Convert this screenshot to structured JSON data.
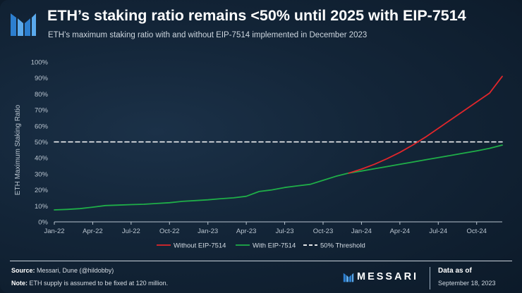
{
  "header": {
    "title": "ETH’s staking ratio remains <50% until 2025 with EIP-7514",
    "subtitle": "ETH’s maximum staking ratio with and without EIP-7514 implemented in December 2023"
  },
  "chart_data": {
    "type": "line",
    "ylabel": "ETH Maximum Staking Ratio",
    "xlabel": "",
    "ylim": [
      0,
      100
    ],
    "xlim": [
      0,
      35
    ],
    "y_ticks": [
      0,
      10,
      20,
      30,
      40,
      50,
      60,
      70,
      80,
      90,
      100
    ],
    "y_tick_labels": [
      "0%",
      "10%",
      "20%",
      "30%",
      "40%",
      "50%",
      "60%",
      "70%",
      "80%",
      "90%",
      "100%"
    ],
    "x_ticks": [
      0,
      3,
      6,
      9,
      12,
      15,
      18,
      21,
      24,
      27,
      30,
      33
    ],
    "x_tick_labels": [
      "Jan-22",
      "Apr-22",
      "Jul-22",
      "Oct-22",
      "Jan-23",
      "Apr-23",
      "Jul-23",
      "Oct-23",
      "Jan-24",
      "Apr-24",
      "Jul-24",
      "Oct-24"
    ],
    "grid": false,
    "legend_position": "bottom-center",
    "series": [
      {
        "name": "Without EIP-7514",
        "color": "#e0262b",
        "x": [
          23,
          24,
          25,
          26,
          27,
          28,
          29,
          30,
          31,
          32,
          33,
          34,
          35
        ],
        "y": [
          30.5,
          33,
          36,
          39.5,
          43.5,
          48,
          53,
          58.5,
          64,
          69.5,
          75,
          80.5,
          91
        ]
      },
      {
        "name": "With EIP-7514",
        "color": "#1fae48",
        "x": [
          0,
          1,
          2,
          3,
          4,
          5,
          6,
          7,
          8,
          9,
          10,
          11,
          12,
          13,
          14,
          15,
          16,
          17,
          18,
          19,
          20,
          21,
          22,
          23,
          24,
          25,
          26,
          27,
          28,
          29,
          30,
          31,
          32,
          33,
          34,
          35
        ],
        "y": [
          7.5,
          7.8,
          8.3,
          9.2,
          10.2,
          10.5,
          10.8,
          11.0,
          11.5,
          12.0,
          12.8,
          13.3,
          13.8,
          14.5,
          15.0,
          16.0,
          19.0,
          20.0,
          21.5,
          22.5,
          23.5,
          26.0,
          28.5,
          30.5,
          31.8,
          33.2,
          34.6,
          36.0,
          37.4,
          38.8,
          40.2,
          41.6,
          43.0,
          44.4,
          46.0,
          48.0
        ]
      },
      {
        "name": "50% Threshold",
        "color": "#ffffff",
        "dashed": true,
        "x": [
          0,
          35
        ],
        "y": [
          50,
          50
        ]
      }
    ]
  },
  "footer": {
    "source_label": "Source:",
    "source_text": "Messari, Dune (@hildobby)",
    "note_label": "Note:",
    "note_text": "ETH supply is assumed to be fixed at 120 million.",
    "brand": "MESSARI",
    "data_as_of_label": "Data as of",
    "data_as_of_date": "September 18, 2023"
  },
  "colors": {
    "background": "#132538",
    "accent_blue": "#3b8fd9",
    "axis": "#b9c4cf"
  }
}
